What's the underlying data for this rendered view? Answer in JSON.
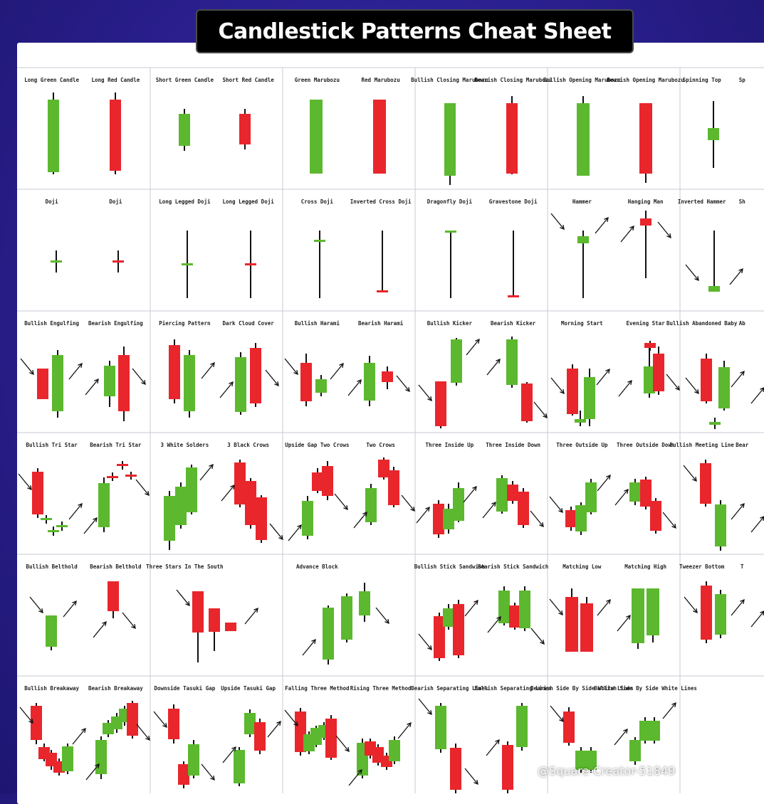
{
  "title": "Candlestick Patterns Cheat Sheet",
  "watermark": "@Square-Creator-51849",
  "colors": {
    "bull": "#5cb82e",
    "bear": "#e8262c",
    "wick": "#111111",
    "grid": "#c8cad6",
    "background": "#2a1f8e"
  },
  "rows": [
    {
      "labels": [
        "Long Green Candle",
        "Long Red Candle",
        "Short Green Candle",
        "Short Red Candle",
        "Green Marubozu",
        "Red Marubozu",
        "Bullish Closing Marubozu",
        "Bearish Closing Marubozu",
        "Bullish Opening Marubozu",
        "Bearish Opening Marubozu",
        "Spinning Top",
        "Sp"
      ]
    },
    {
      "labels": [
        "Doji",
        "Doji",
        "Long Legged Doji",
        "Long Legged Doji",
        "Cross Doji",
        "Inverted Cross Doji",
        "Dragonfly Doji",
        "Gravestone Doji",
        "Hammer",
        "Hanging Man",
        "Inverted Hammer",
        "Sh"
      ]
    },
    {
      "labels": [
        "Bullish Engulfing",
        "Bearish Engulfing",
        "Piercing Pattern",
        "Dark Cloud Cover",
        "Bullish Harami",
        "Bearish Harami",
        "Bullish Kicker",
        "Bearish Kicker",
        "Morning Start",
        "Evening Star",
        "Bullish Abandoned Baby",
        "Ab"
      ]
    },
    {
      "labels": [
        "Bullish Tri Star",
        "Bearish Tri Star",
        "3 White Solders",
        "3 Black Crows",
        "Upside Gap Two Crows",
        "Two Crows",
        "Three Inside Up",
        "Three Inside Down",
        "Three Outside Up",
        "Three Outside Down",
        "Bullish Meeting Line",
        "Bear"
      ]
    },
    {
      "labels": [
        "Bullish Belthold",
        "Bearish Belthold",
        "Three Stars In The South",
        "",
        "Advance Block",
        "",
        "Bullish Stick Sandwish",
        "Bearish Stick Sandwich",
        "Matching Low",
        "Matching High",
        "Tweezer Bottom",
        "T"
      ]
    },
    {
      "labels": [
        "Bullish Breakaway",
        "Bearish Breakaway",
        "Downside Tasuki Gap",
        "Upside Tasuki Gap",
        "Falling Three Method",
        "Rising Three Method",
        "Bearish Separating Lines",
        "Bullish Separating Lines",
        "Bearish Side By Side White Lines",
        "Bullish Side By Side White Lines",
        "",
        ""
      ]
    }
  ]
}
